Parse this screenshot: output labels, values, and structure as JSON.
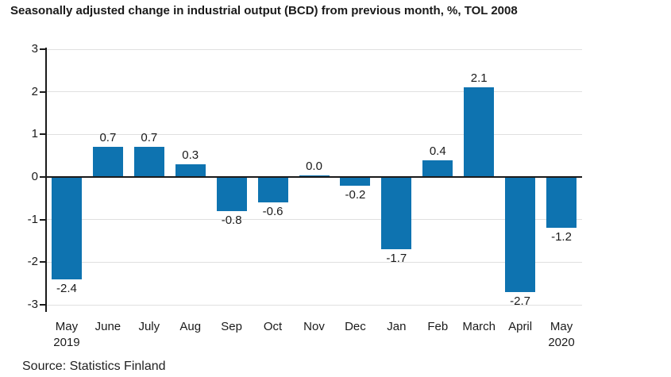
{
  "title": "Seasonally adjusted change in industrial output (BCD) from previous month, %, TOL 2008",
  "source": "Source: Statistics Finland",
  "colors": {
    "bar": "#0e73b0",
    "gridline": "#e0e0e0",
    "axis": "#1a1a1a",
    "text": "#1a1a1a"
  },
  "chart_data": {
    "type": "bar",
    "categories": [
      "May",
      "June",
      "July",
      "Aug",
      "Sep",
      "Oct",
      "Nov",
      "Dec",
      "Jan",
      "Feb",
      "March",
      "April",
      "May"
    ],
    "sub_labels": [
      "2019",
      "",
      "",
      "",
      "",
      "",
      "",
      "",
      "",
      "",
      "",
      "",
      "2020"
    ],
    "values": [
      -2.4,
      0.7,
      0.7,
      0.3,
      -0.8,
      -0.6,
      0.0,
      -0.2,
      -1.7,
      0.4,
      2.1,
      -2.7,
      -1.2
    ],
    "value_labels": [
      "-2.4",
      "0.7",
      "0.7",
      "0.3",
      "-0.8",
      "-0.6",
      "0.0",
      "-0.2",
      "-1.7",
      "0.4",
      "2.1",
      "-2.7",
      "-1.2"
    ],
    "title": "Seasonally adjusted change in industrial output (BCD) from previous month, %, TOL 2008",
    "xlabel": "",
    "ylabel": "",
    "y_ticks": [
      3,
      2,
      1,
      0,
      -1,
      -2,
      -3
    ],
    "ylim": [
      -3,
      3
    ],
    "grid": true,
    "legend": false
  }
}
